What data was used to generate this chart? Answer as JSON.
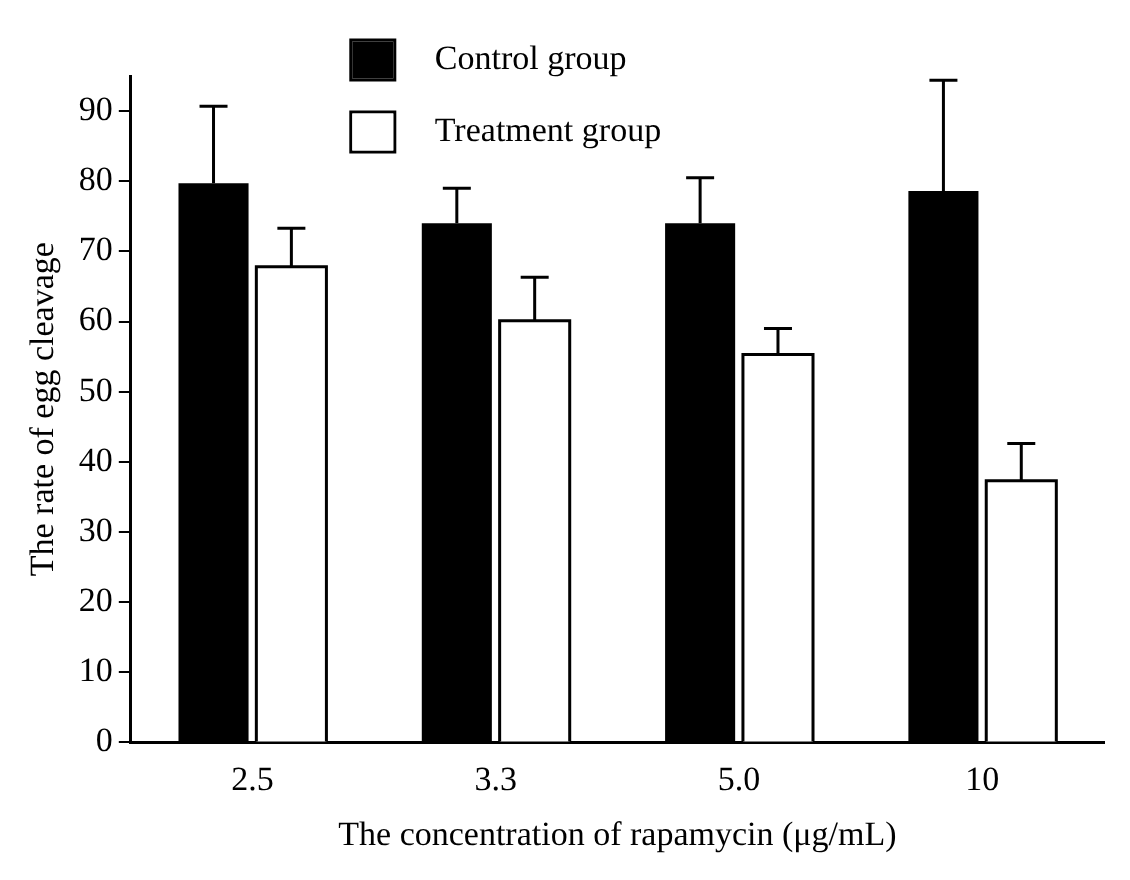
{
  "chart_data": {
    "type": "bar",
    "xlabel": "The concentration of rapamycin (μg/mL)",
    "ylabel": "The rate of egg cleavage",
    "categories": [
      "2.5",
      "3.3",
      "5.0",
      "10"
    ],
    "series": [
      {
        "name": "Control group",
        "color": "#000000",
        "values": [
          79.7,
          74,
          74,
          78.6
        ],
        "errors": [
          [
            79.7,
            90.7
          ],
          [
            74,
            79
          ],
          [
            74,
            80.5
          ],
          [
            78.6,
            94.4
          ]
        ]
      },
      {
        "name": "Treatment group",
        "color": "#ffffff",
        "values": [
          67.8,
          60.1,
          55.3,
          37.3
        ],
        "errors": [
          [
            67.8,
            73.3
          ],
          [
            60.1,
            66.3
          ],
          [
            55.3,
            59
          ],
          [
            37.3,
            42.6
          ]
        ]
      }
    ],
    "ylim": [
      0,
      95
    ],
    "yticks": [
      0,
      10,
      20,
      30,
      40,
      50,
      60,
      70,
      80,
      90
    ],
    "grid": false,
    "legend": "top"
  }
}
